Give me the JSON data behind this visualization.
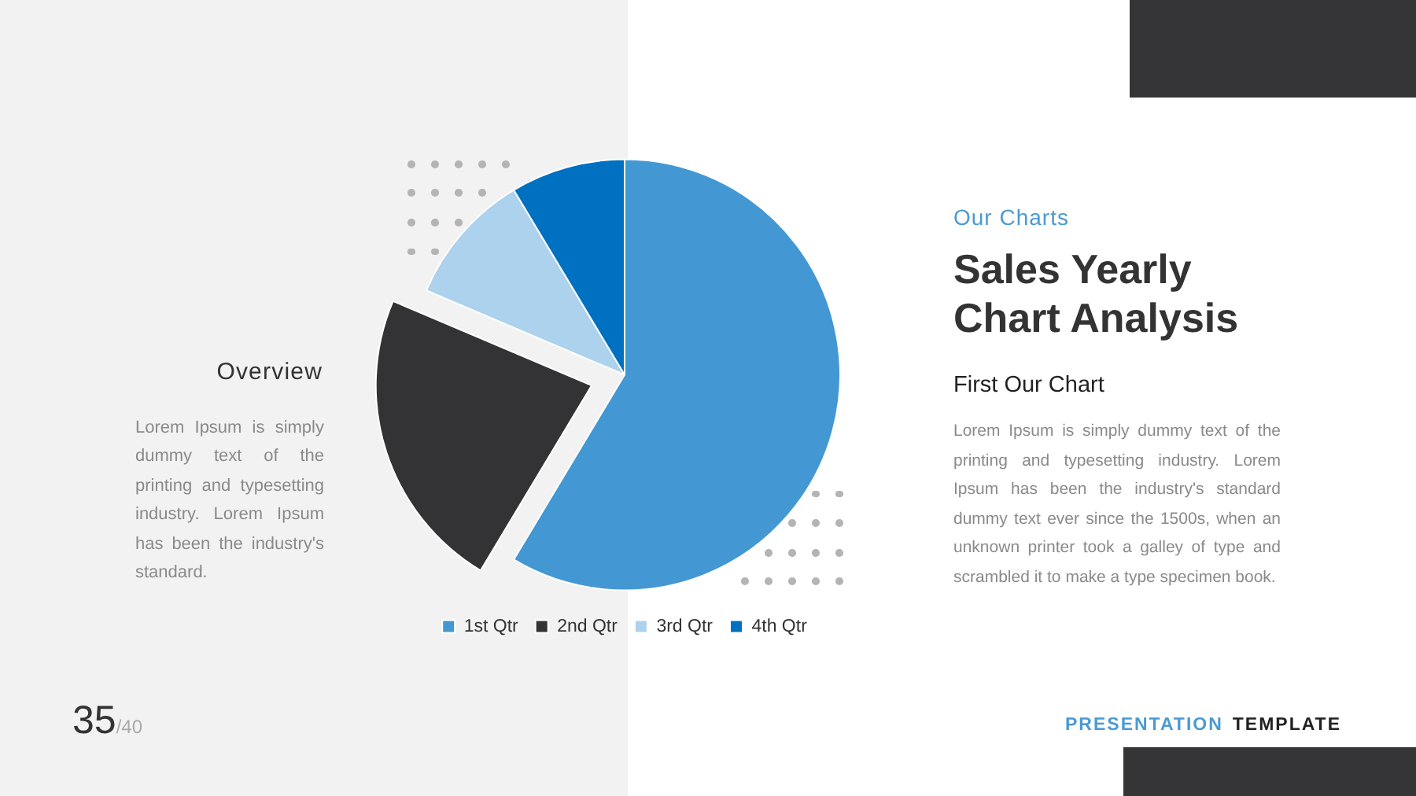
{
  "chart_data": {
    "type": "pie",
    "title": "Sales Yearly Chart Analysis",
    "subtitle": "Our Charts",
    "categories": [
      "1st Qtr",
      "2nd Qtr",
      "3rd Qtr",
      "4th Qtr"
    ],
    "values": [
      58.6,
      22.8,
      10,
      8.6
    ],
    "colors": [
      "#4398d3",
      "#333335",
      "#acd2ed",
      "#0070c0"
    ],
    "legend": "bottom",
    "annotations": [
      "Overview",
      "Lorem Ipsum is simply dummy text of the printing and typesetting industry.  Lorem Ipsum has been the industry's standard.",
      "First Our Chart",
      "Lorem Ipsum is simply dummy text of the printing and typesetting industry.  Lorem Ipsum has been the industry's standard dummy text ever since the 1500s, when an unknown printer took a galley of type and scrambled it to make a type specimen book.",
      "35",
      "/40",
      "PRESENTATION",
      "TEMPLATE"
    ]
  }
}
